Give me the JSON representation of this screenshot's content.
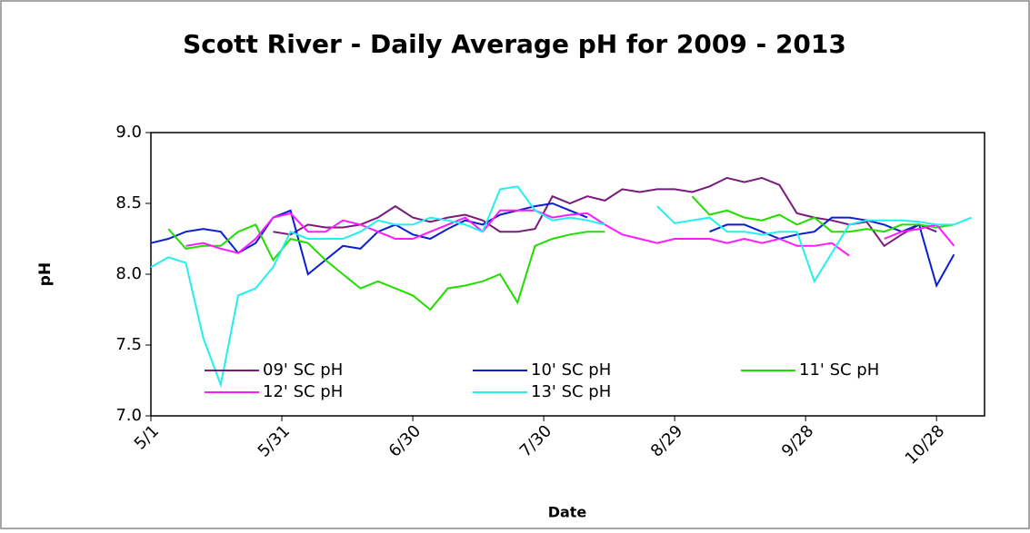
{
  "chart_data": {
    "type": "line",
    "title": "Scott River - Daily Average pH for 2009 - 2013",
    "x_label": "Date",
    "y_label": "pH",
    "xlim": [
      0,
      191
    ],
    "xticks": [
      {
        "value": 0,
        "label": "5/1"
      },
      {
        "value": 30,
        "label": "5/31"
      },
      {
        "value": 60,
        "label": "6/30"
      },
      {
        "value": 90,
        "label": "7/30"
      },
      {
        "value": 120,
        "label": "8/29"
      },
      {
        "value": 150,
        "label": "9/28"
      },
      {
        "value": 180,
        "label": "10/28"
      }
    ],
    "ylim": [
      7,
      9
    ],
    "yticks": [
      {
        "value": 7,
        "label": "7.0"
      },
      {
        "value": 7.5,
        "label": "7.5"
      },
      {
        "value": 8,
        "label": "8.0"
      },
      {
        "value": 8.5,
        "label": "8.5"
      },
      {
        "value": 9,
        "label": "9.0"
      }
    ],
    "grid": false,
    "x": [
      0,
      4,
      8,
      12,
      16,
      20,
      24,
      28,
      32,
      36,
      40,
      44,
      48,
      52,
      56,
      60,
      64,
      68,
      72,
      76,
      80,
      84,
      88,
      92,
      96,
      100,
      104,
      108,
      112,
      116,
      120,
      124,
      128,
      132,
      136,
      140,
      144,
      148,
      152,
      156,
      160,
      164,
      168,
      172,
      176,
      180,
      184,
      188
    ],
    "series": [
      {
        "name": "09' SC pH",
        "color": "#7a1a7a",
        "values": [
          null,
          null,
          null,
          null,
          null,
          null,
          null,
          8.3,
          8.28,
          8.35,
          8.33,
          8.33,
          8.35,
          8.4,
          8.48,
          8.4,
          8.37,
          8.4,
          8.42,
          8.38,
          8.3,
          8.3,
          8.32,
          8.55,
          8.5,
          8.55,
          8.52,
          8.6,
          8.58,
          8.6,
          8.6,
          8.58,
          8.62,
          8.68,
          8.65,
          8.68,
          8.63,
          8.43,
          8.4,
          8.38,
          8.35,
          8.37,
          8.2,
          8.28,
          8.35,
          8.3,
          null,
          null
        ]
      },
      {
        "name": "10' SC pH",
        "color": "#0a1fd0",
        "values": [
          8.22,
          8.25,
          8.3,
          8.32,
          8.3,
          8.15,
          8.22,
          8.4,
          8.45,
          8.0,
          8.1,
          8.2,
          8.18,
          8.3,
          8.35,
          8.28,
          8.25,
          8.32,
          8.38,
          8.35,
          8.42,
          8.45,
          8.48,
          8.5,
          8.45,
          8.4,
          null,
          null,
          null,
          null,
          null,
          null,
          8.3,
          8.35,
          8.35,
          8.3,
          8.25,
          8.28,
          8.3,
          8.4,
          8.4,
          8.38,
          8.35,
          8.3,
          8.35,
          7.92,
          8.14,
          null
        ]
      },
      {
        "name": "11' SC pH",
        "color": "#22dd00",
        "values": [
          null,
          8.32,
          8.18,
          8.2,
          8.2,
          8.3,
          8.35,
          8.1,
          8.25,
          8.22,
          8.1,
          8.0,
          7.9,
          7.95,
          7.9,
          7.85,
          7.75,
          7.9,
          7.92,
          7.95,
          8.0,
          7.8,
          8.2,
          8.25,
          8.28,
          8.3,
          8.3,
          null,
          null,
          null,
          null,
          8.55,
          8.42,
          8.45,
          8.4,
          8.38,
          8.42,
          8.35,
          8.4,
          8.3,
          8.3,
          8.32,
          8.3,
          8.35,
          8.35,
          8.33,
          8.35,
          null
        ]
      },
      {
        "name": "12' SC pH",
        "color": "#ff1aff",
        "values": [
          null,
          null,
          8.2,
          8.22,
          8.18,
          8.15,
          8.25,
          8.4,
          8.43,
          8.3,
          8.3,
          8.38,
          8.35,
          8.3,
          8.25,
          8.25,
          8.3,
          8.35,
          8.4,
          8.3,
          8.45,
          8.45,
          8.45,
          8.4,
          8.42,
          8.43,
          8.35,
          8.28,
          8.25,
          8.22,
          8.25,
          8.25,
          8.25,
          8.22,
          8.25,
          8.22,
          8.25,
          8.2,
          8.2,
          8.22,
          8.13,
          null,
          8.25,
          8.3,
          8.32,
          8.35,
          8.2,
          null
        ]
      },
      {
        "name": "13' SC pH",
        "color": "#22f0f0",
        "values": [
          8.05,
          8.12,
          8.08,
          7.55,
          7.22,
          7.85,
          7.9,
          8.05,
          8.3,
          8.25,
          8.25,
          8.25,
          8.3,
          8.38,
          8.35,
          8.35,
          8.4,
          8.38,
          8.35,
          8.3,
          8.6,
          8.62,
          8.45,
          8.38,
          8.4,
          8.38,
          8.35,
          null,
          null,
          8.48,
          8.36,
          8.38,
          8.4,
          8.3,
          8.3,
          8.28,
          8.3,
          8.3,
          7.95,
          8.15,
          8.35,
          8.38,
          8.38,
          8.38,
          8.37,
          8.35,
          8.35,
          8.4
        ]
      }
    ]
  }
}
